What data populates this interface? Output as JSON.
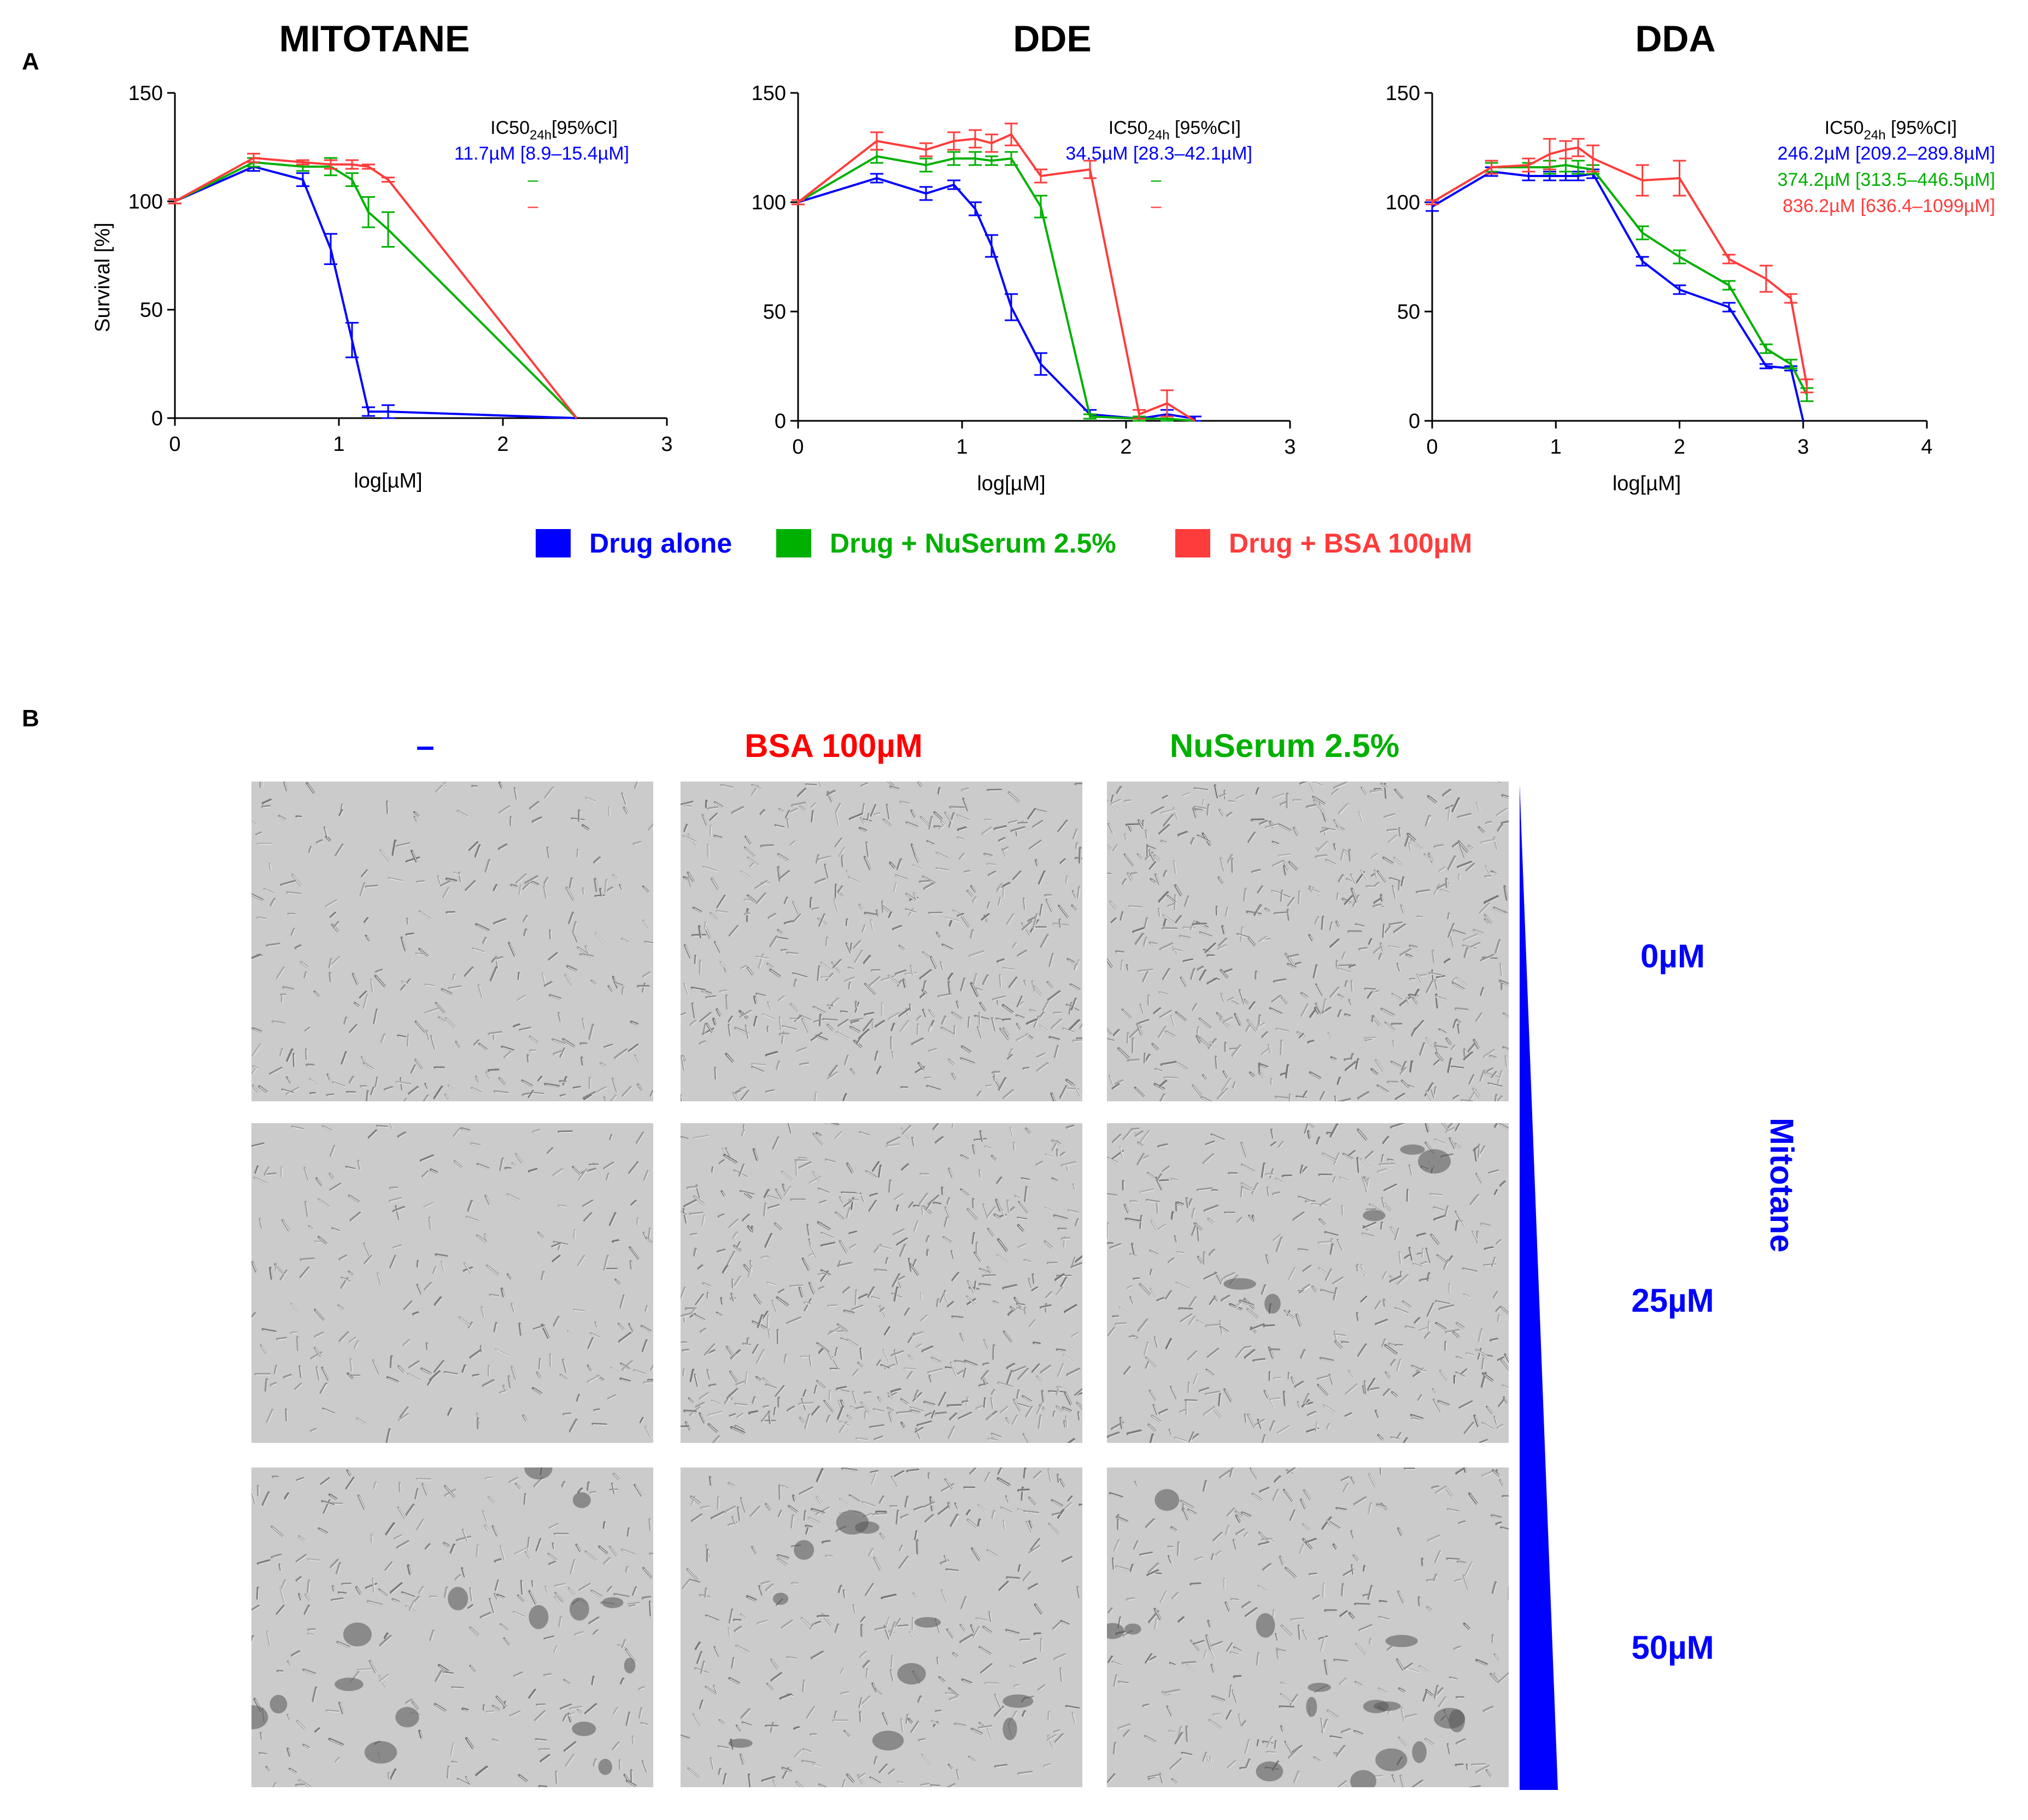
{
  "panel_a_letter": "A",
  "panel_b_letter": "B",
  "legend": [
    {
      "label": "Drug alone",
      "color": "#0000ff"
    },
    {
      "label": "Drug + NuSerum 2.5%",
      "color": "#00b000"
    },
    {
      "label": "Drug  + BSA 100µM",
      "color": "#ff3c3c"
    }
  ],
  "chart_data": [
    {
      "type": "line",
      "title": "MITOTANE",
      "xlabel": "log[µM]",
      "ylabel": "Survival [%]",
      "xlim": [
        0,
        3
      ],
      "ylim": [
        0,
        150
      ],
      "xticks": [
        "0",
        "1",
        "2",
        "3"
      ],
      "yticks": [
        "0",
        "50",
        "100",
        "150"
      ],
      "ic50_header": "IC50",
      "ic50_sub": "24h",
      "ic50_tail": "[95%CI]",
      "ic50": [
        {
          "value": "11.7µM  [8.9–15.4µM]",
          "color": "#0000ff"
        },
        {
          "value": "–",
          "color": "#00b000"
        },
        {
          "value": "–",
          "color": "#ff3c3c"
        }
      ],
      "series": [
        {
          "name": "Drug alone",
          "color": "#0000ff",
          "x": [
            0,
            0.48,
            0.78,
            0.95,
            1.08,
            1.18,
            1.3,
            2.45
          ],
          "y": [
            100,
            116,
            110,
            78,
            36,
            3,
            3,
            0
          ],
          "err": [
            1,
            2,
            3,
            7,
            8,
            2,
            3,
            0
          ]
        },
        {
          "name": "Drug + NuSerum 2.5%",
          "color": "#00b000",
          "x": [
            0,
            0.48,
            0.78,
            0.95,
            1.08,
            1.18,
            1.3,
            2.45
          ],
          "y": [
            100,
            118,
            116,
            116,
            110,
            95,
            87,
            0
          ],
          "err": [
            1,
            2,
            2,
            4,
            3,
            7,
            8,
            0
          ]
        },
        {
          "name": "Drug  + BSA 100µM",
          "color": "#ff3c3c",
          "x": [
            0,
            0.48,
            0.78,
            0.95,
            1.08,
            1.18,
            1.3,
            2.45
          ],
          "y": [
            100,
            120,
            118,
            117,
            117,
            116,
            110,
            0
          ],
          "err": [
            1,
            2,
            1,
            2,
            2,
            1,
            1,
            0
          ]
        }
      ]
    },
    {
      "type": "line",
      "title": "DDE",
      "xlabel": "log[µM]",
      "ylabel": "",
      "xlim": [
        0,
        3
      ],
      "ylim": [
        0,
        150
      ],
      "xticks": [
        "0",
        "1",
        "2",
        "3"
      ],
      "yticks": [
        "0",
        "50",
        "100",
        "150"
      ],
      "ic50_header": "IC50",
      "ic50_sub": "24h",
      "ic50_tail": " [95%CI]",
      "ic50": [
        {
          "value": "34.5µM  [28.3–42.1µM]",
          "color": "#0000ff"
        },
        {
          "value": "–",
          "color": "#00b000"
        },
        {
          "value": "–",
          "color": "#ff3c3c"
        }
      ],
      "series": [
        {
          "name": "Drug alone",
          "color": "#0000ff",
          "x": [
            0,
            0.48,
            0.78,
            0.95,
            1.08,
            1.18,
            1.3,
            1.48,
            1.78,
            2.08,
            2.25,
            2.42
          ],
          "y": [
            100,
            111,
            104,
            108,
            97,
            80,
            52,
            26,
            3,
            1,
            3,
            1
          ],
          "err": [
            1,
            2,
            3,
            2,
            3,
            5,
            6,
            5,
            2,
            1,
            2,
            1
          ]
        },
        {
          "name": "Drug + NuSerum 2.5%",
          "color": "#00b000",
          "x": [
            0,
            0.48,
            0.78,
            0.95,
            1.08,
            1.18,
            1.3,
            1.48,
            1.78,
            2.08,
            2.25,
            2.42
          ],
          "y": [
            100,
            121,
            117,
            120,
            120,
            119,
            120,
            98,
            2,
            1,
            1,
            0
          ],
          "err": [
            1,
            3,
            3,
            3,
            3,
            2,
            3,
            5,
            1,
            1,
            1,
            0
          ]
        },
        {
          "name": "Drug  + BSA 100µM",
          "color": "#ff3c3c",
          "x": [
            0,
            0.48,
            0.78,
            0.95,
            1.08,
            1.18,
            1.3,
            1.48,
            1.78,
            2.08,
            2.25,
            2.42
          ],
          "y": [
            100,
            128,
            124,
            128,
            129,
            127,
            131,
            112,
            115,
            3,
            8,
            0
          ],
          "err": [
            1,
            4,
            3,
            4,
            4,
            4,
            5,
            3,
            4,
            2,
            6,
            0
          ]
        }
      ]
    },
    {
      "type": "line",
      "title": "DDA",
      "xlabel": "log[µM]",
      "ylabel": "",
      "xlim": [
        0,
        4
      ],
      "ylim": [
        0,
        150
      ],
      "xticks": [
        "0",
        "1",
        "2",
        "3",
        "4"
      ],
      "yticks": [
        "0",
        "50",
        "100",
        "150"
      ],
      "ic50_header": "IC50",
      "ic50_sub": "24h",
      "ic50_tail": " [95%CI]",
      "ic50": [
        {
          "value": "246.2µM  [209.2–289.8µM]",
          "color": "#0000ff"
        },
        {
          "value": "374.2µM  [313.5–446.5µM]",
          "color": "#00b000"
        },
        {
          "value": "836.2µM  [636.4–1099µM]",
          "color": "#ff3c3c"
        }
      ],
      "series": [
        {
          "name": "Drug alone",
          "color": "#0000ff",
          "x": [
            0,
            0.48,
            0.78,
            0.95,
            1.08,
            1.18,
            1.3,
            1.7,
            2.0,
            2.4,
            2.7,
            2.9,
            3.0
          ],
          "y": [
            98,
            114,
            112,
            112,
            112,
            112,
            113,
            73,
            60,
            52,
            25,
            24,
            0
          ],
          "err": [
            2,
            2,
            2,
            2,
            2,
            2,
            2,
            2,
            2,
            2,
            1,
            1,
            0
          ]
        },
        {
          "name": "Drug + NuSerum 2.5%",
          "color": "#00b000",
          "x": [
            0,
            0.48,
            0.78,
            0.95,
            1.08,
            1.18,
            1.3,
            1.7,
            2.0,
            2.4,
            2.7,
            2.9,
            3.03
          ],
          "y": [
            100,
            116,
            116,
            116,
            117,
            116,
            115,
            86,
            75,
            62,
            33,
            26,
            12
          ],
          "err": [
            1,
            2,
            2,
            3,
            3,
            3,
            2,
            3,
            3,
            2,
            2,
            2,
            3
          ]
        },
        {
          "name": "Drug  + BSA 100µM",
          "color": "#ff3c3c",
          "x": [
            0,
            0.48,
            0.78,
            0.95,
            1.08,
            1.18,
            1.3,
            1.7,
            2.0,
            2.4,
            2.7,
            2.9,
            3.03
          ],
          "y": [
            100,
            116,
            117,
            122,
            124,
            125,
            120,
            110,
            111,
            74,
            65,
            56,
            16
          ],
          "err": [
            1,
            3,
            3,
            7,
            4,
            4,
            6,
            7,
            8,
            2,
            6,
            2,
            3
          ]
        }
      ]
    }
  ],
  "panel_b": {
    "col_headers": [
      {
        "label": "–",
        "color": "#0000ff"
      },
      {
        "label": "BSA 100µM",
        "color": "#ff0000"
      },
      {
        "label": "NuSerum 2.5%",
        "color": "#00b000"
      }
    ],
    "dose_labels": [
      "0µM",
      "25µM",
      "50µM"
    ],
    "gradient_label": "Mitotane",
    "gradient_color": "#0000ff"
  }
}
